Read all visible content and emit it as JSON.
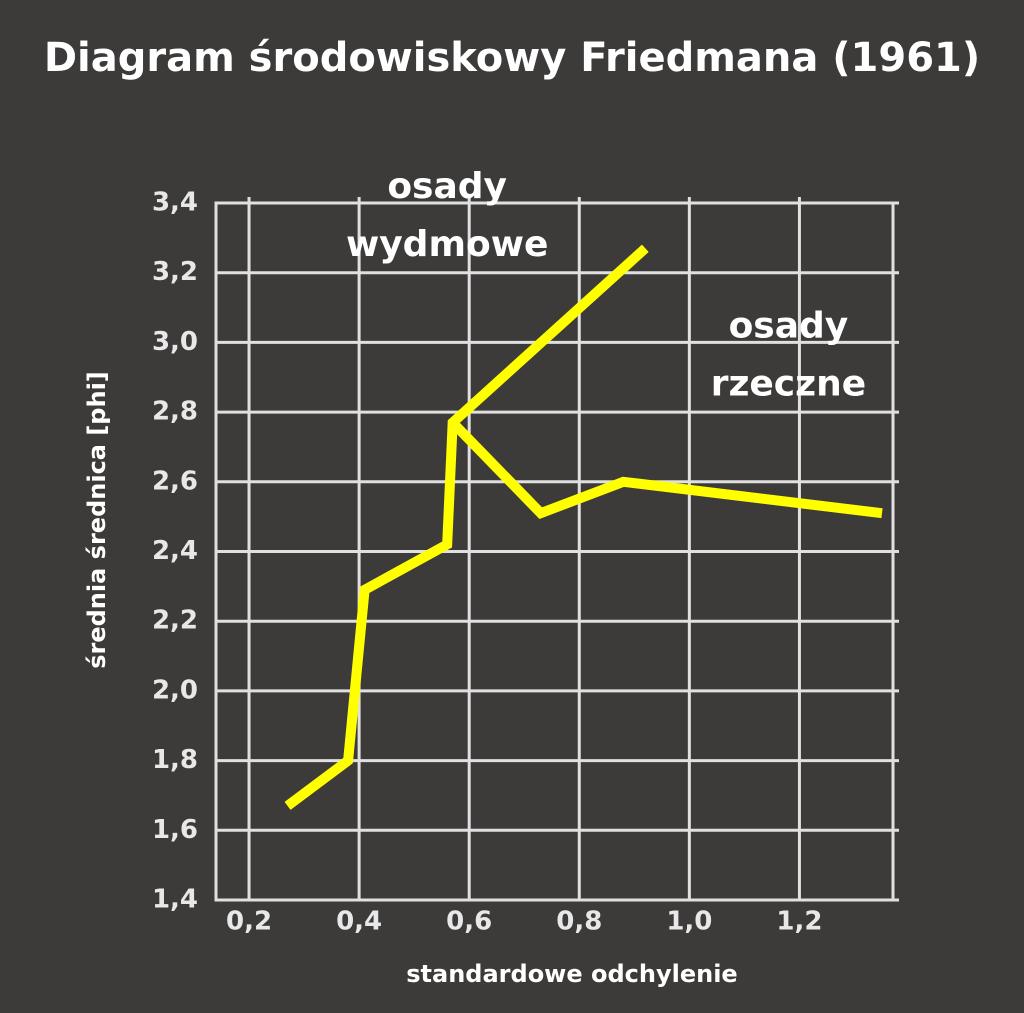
{
  "chart_data": {
    "type": "line",
    "title": "Diagram środowiskowy Friedmana (1961)",
    "x_label": "standardowe odchylenie",
    "y_label": "średnia średnica [phi]",
    "xlim": [
      0.14,
      1.37
    ],
    "ylim": [
      1.4,
      3.4
    ],
    "xticks": [
      {
        "value": 0.2,
        "label": "0,2"
      },
      {
        "value": 0.4,
        "label": "0,4"
      },
      {
        "value": 0.6,
        "label": "0,6"
      },
      {
        "value": 0.8,
        "label": "0,8"
      },
      {
        "value": 1.0,
        "label": "1,0"
      },
      {
        "value": 1.2,
        "label": "1,2"
      }
    ],
    "yticks": [
      {
        "value": 1.4,
        "label": "1,4"
      },
      {
        "value": 1.6,
        "label": "1,6"
      },
      {
        "value": 1.8,
        "label": "1,8"
      },
      {
        "value": 2.0,
        "label": "2,0"
      },
      {
        "value": 2.2,
        "label": "2,2"
      },
      {
        "value": 2.4,
        "label": "2,4"
      },
      {
        "value": 2.6,
        "label": "2,6"
      },
      {
        "value": 2.8,
        "label": "2,8"
      },
      {
        "value": 3.0,
        "label": "3,0"
      },
      {
        "value": 3.2,
        "label": "3,2"
      },
      {
        "value": 3.4,
        "label": "3,4"
      }
    ],
    "grid": true,
    "series": [
      {
        "color": "#ffff00",
        "x": [
          0.27,
          0.38,
          0.41,
          0.56,
          0.57,
          0.92
        ],
        "values": [
          1.67,
          1.8,
          2.29,
          2.42,
          2.77,
          3.27
        ]
      },
      {
        "color": "#ffff00",
        "x": [
          0.57,
          0.73,
          0.88,
          1.35
        ],
        "values": [
          2.77,
          2.51,
          2.6,
          2.51
        ]
      }
    ],
    "annotations": [
      {
        "x": 0.56,
        "y": 3.3,
        "lines": [
          "osady",
          "wydmowe"
        ]
      },
      {
        "x": 1.18,
        "y": 2.9,
        "lines": [
          "osady",
          "rzeczne"
        ]
      }
    ]
  }
}
